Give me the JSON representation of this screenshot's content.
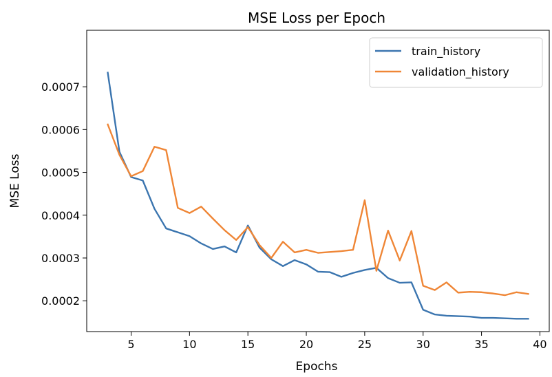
{
  "chart_data": {
    "type": "line",
    "title": "MSE Loss per Epoch",
    "xlabel": "Epochs",
    "ylabel": "MSE Loss",
    "xlim": [
      1.2,
      40.8
    ],
    "ylim": [
      0.000128,
      0.000832
    ],
    "x_ticks": [
      5,
      10,
      15,
      20,
      25,
      30,
      35,
      40
    ],
    "x_tick_labels": [
      "5",
      "10",
      "15",
      "20",
      "25",
      "30",
      "35",
      "40"
    ],
    "y_ticks": [
      0.0002,
      0.0003,
      0.0004,
      0.0005,
      0.0006,
      0.0007
    ],
    "y_tick_labels": [
      "0.0002",
      "0.0003",
      "0.0004",
      "0.0005",
      "0.0006",
      "0.0007"
    ],
    "grid": false,
    "legend_position": "top-right",
    "x": [
      3,
      4,
      5,
      6,
      7,
      8,
      9,
      10,
      11,
      12,
      13,
      14,
      15,
      16,
      17,
      18,
      19,
      20,
      21,
      22,
      23,
      24,
      25,
      26,
      27,
      28,
      29,
      30,
      31,
      32,
      33,
      34,
      35,
      36,
      37,
      38,
      39
    ],
    "series": [
      {
        "name": "train_history",
        "color": "#3b75af",
        "values": [
          0.000733,
          0.000548,
          0.000489,
          0.000481,
          0.000415,
          0.000369,
          0.00036,
          0.000351,
          0.000334,
          0.000321,
          0.000327,
          0.000313,
          0.000376,
          0.000324,
          0.000297,
          0.000281,
          0.000295,
          0.000285,
          0.000268,
          0.000267,
          0.000256,
          0.000265,
          0.000272,
          0.000277,
          0.000253,
          0.000242,
          0.000243,
          0.000179,
          0.000168,
          0.000165,
          0.000164,
          0.000163,
          0.00016,
          0.00016,
          0.000159,
          0.000158,
          0.000158
        ]
      },
      {
        "name": "validation_history",
        "color": "#ef8636",
        "values": [
          0.000612,
          0.000541,
          0.000491,
          0.000503,
          0.00056,
          0.000552,
          0.000417,
          0.000405,
          0.00042,
          0.000392,
          0.000365,
          0.000342,
          0.000372,
          0.00033,
          0.0003,
          0.000338,
          0.000313,
          0.000319,
          0.000312,
          0.000314,
          0.000316,
          0.000319,
          0.000435,
          0.00027,
          0.000364,
          0.000294,
          0.000363,
          0.000235,
          0.000225,
          0.000243,
          0.000219,
          0.000221,
          0.00022,
          0.000217,
          0.000213,
          0.00022,
          0.000216
        ]
      }
    ]
  }
}
